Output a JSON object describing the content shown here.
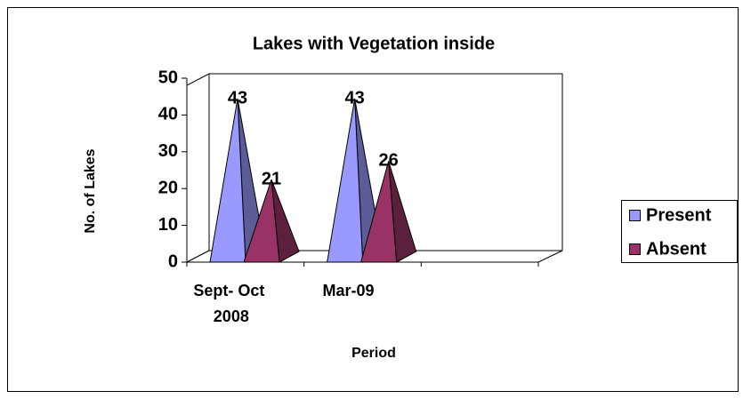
{
  "chart_data": {
    "type": "pyramid3d",
    "title": "Lakes with Vegetation inside",
    "x_label": "Period",
    "y_label": "No. of Lakes",
    "categories": [
      "Sept- Oct 2008",
      "Mar-09",
      null
    ],
    "series": [
      {
        "name": "Present",
        "color": "#9999ff",
        "values": [
          43,
          43,
          null
        ]
      },
      {
        "name": "Absent",
        "color": "#993366",
        "values": [
          21,
          26,
          null
        ]
      }
    ],
    "ylim": [
      0,
      50
    ],
    "yticks": [
      0,
      10,
      20,
      30,
      40,
      50
    ],
    "legend": "right"
  }
}
